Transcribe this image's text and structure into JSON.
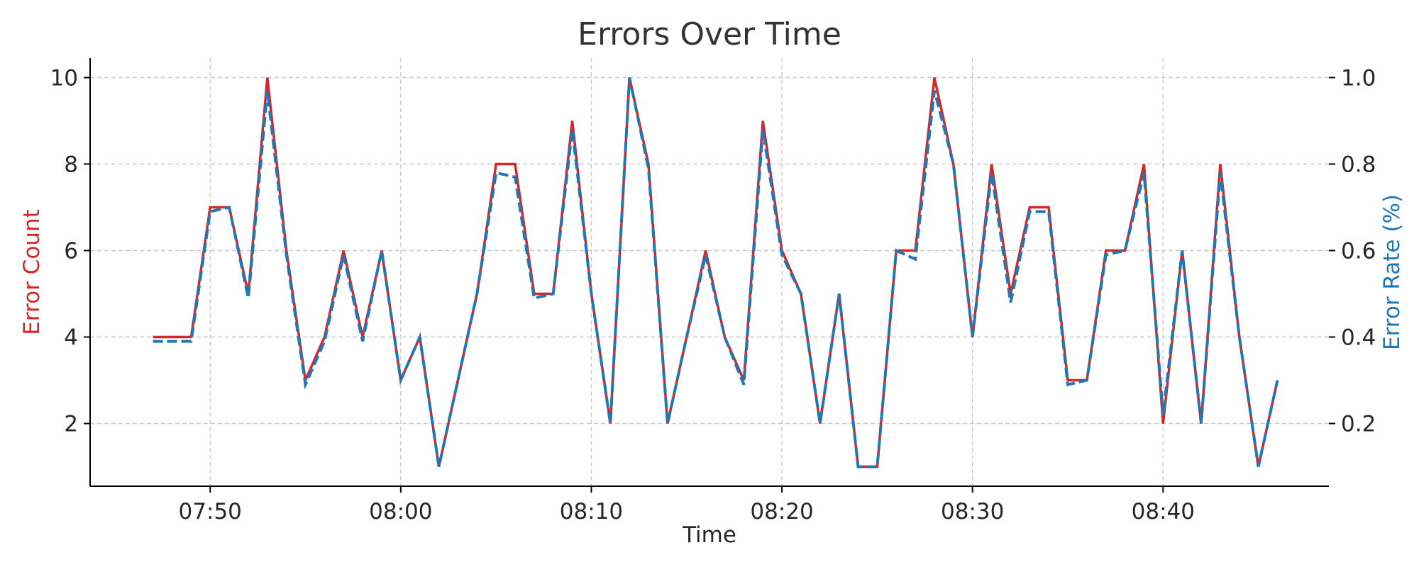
{
  "chart_data": {
    "type": "line",
    "title": "Errors Over Time",
    "xlabel": "Time",
    "ylabel_left": "Error Count",
    "ylabel_right": "Error Rate (%)",
    "colors": {
      "count": "#d62728",
      "rate": "#1f77b4",
      "grid": "#c8c8c8",
      "axis": "#000000"
    },
    "grid": true,
    "x_ticks": [
      "07:50",
      "08:00",
      "08:10",
      "08:20",
      "08:30",
      "08:40"
    ],
    "y_left_ticks": [
      "2",
      "4",
      "6",
      "8",
      "10"
    ],
    "y_right_ticks": [
      "0.2",
      "0.4",
      "0.6",
      "0.8",
      "1.0"
    ],
    "xlim": [
      "07:43.7",
      "08:48.7"
    ],
    "ylim_left": [
      0.55,
      10.45
    ],
    "ylim_right": [
      0.055,
      1.045
    ],
    "x": [
      "07:47",
      "07:48",
      "07:49",
      "07:50",
      "07:51",
      "07:52",
      "07:53",
      "07:54",
      "07:55",
      "07:56",
      "07:57",
      "07:58",
      "07:59",
      "08:00",
      "08:01",
      "08:02",
      "08:03",
      "08:04",
      "08:05",
      "08:06",
      "08:07",
      "08:08",
      "08:09",
      "08:10",
      "08:11",
      "08:12",
      "08:13",
      "08:14",
      "08:15",
      "08:16",
      "08:17",
      "08:18",
      "08:19",
      "08:20",
      "08:21",
      "08:22",
      "08:23",
      "08:24",
      "08:25",
      "08:26",
      "08:27",
      "08:28",
      "08:29",
      "08:30",
      "08:31",
      "08:32",
      "08:33",
      "08:34",
      "08:35",
      "08:36",
      "08:37",
      "08:38",
      "08:39",
      "08:40",
      "08:41",
      "08:42",
      "08:43",
      "08:44",
      "08:45",
      "08:46"
    ],
    "series": [
      {
        "name": "Error Count",
        "axis": "left",
        "style": "solid",
        "values": [
          4,
          4,
          4,
          7,
          7,
          5,
          10,
          6,
          3,
          4,
          6,
          4,
          6,
          3,
          4,
          1,
          3,
          5,
          8,
          8,
          5,
          5,
          9,
          5,
          2,
          10,
          8,
          2,
          4,
          6,
          4,
          3,
          9,
          6,
          5,
          2,
          5,
          1,
          1,
          6,
          6,
          10,
          8,
          4,
          8,
          5,
          7,
          7,
          3,
          3,
          6,
          6,
          8,
          2,
          6,
          2,
          8,
          4,
          1,
          3
        ]
      },
      {
        "name": "Error Rate (%)",
        "axis": "right",
        "style": "dashed",
        "values": [
          0.39,
          0.39,
          0.39,
          0.69,
          0.7,
          0.49,
          0.97,
          0.59,
          0.29,
          0.39,
          0.59,
          0.39,
          0.6,
          0.3,
          0.4,
          0.1,
          0.3,
          0.5,
          0.78,
          0.77,
          0.49,
          0.5,
          0.88,
          0.5,
          0.2,
          1.0,
          0.79,
          0.2,
          0.4,
          0.59,
          0.4,
          0.29,
          0.88,
          0.59,
          0.5,
          0.2,
          0.5,
          0.1,
          0.1,
          0.6,
          0.58,
          0.97,
          0.8,
          0.4,
          0.78,
          0.48,
          0.69,
          0.69,
          0.29,
          0.3,
          0.59,
          0.6,
          0.78,
          0.22,
          0.6,
          0.2,
          0.78,
          0.4,
          0.1,
          0.3
        ]
      }
    ]
  }
}
